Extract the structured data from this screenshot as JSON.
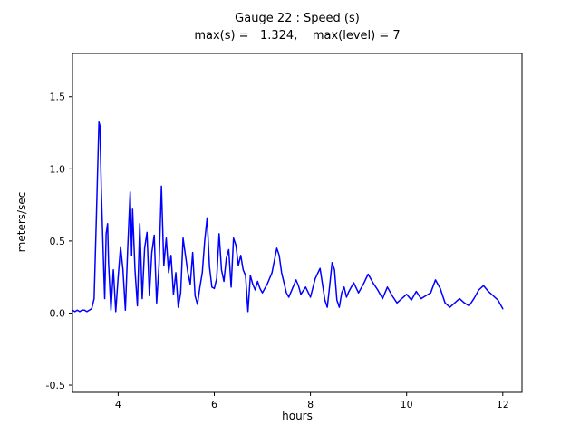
{
  "figure": {
    "title": "Gauge 22 : Speed (s)",
    "subtitle": "max(s) =   1.324,    max(level) = 7",
    "xlabel": "hours",
    "ylabel": "meters/sec"
  },
  "chart_data": {
    "type": "line",
    "title": "Gauge 22 : Speed (s)",
    "subtitle": "max(s) =   1.324,    max(level) = 7",
    "xlabel": "hours",
    "ylabel": "meters/sec",
    "xlim": [
      3.05,
      12.4
    ],
    "ylim": [
      -0.55,
      1.8
    ],
    "xticks": [
      4,
      6,
      8,
      10,
      12
    ],
    "xtick_labels": [
      "4",
      "6",
      "8",
      "10",
      "12"
    ],
    "yticks": [
      -0.5,
      0.0,
      0.5,
      1.0,
      1.5
    ],
    "ytick_labels": [
      "-0.5",
      "0.0",
      "0.5",
      "1.0",
      "1.5"
    ],
    "grid": false,
    "legend": null,
    "line_color": "#0000ff",
    "line_width": 1.5,
    "max_s": 1.324,
    "max_level": 7,
    "series": [
      {
        "name": "speed",
        "points": [
          [
            3.05,
            0.02
          ],
          [
            3.1,
            0.01
          ],
          [
            3.15,
            0.02
          ],
          [
            3.2,
            0.01
          ],
          [
            3.25,
            0.02
          ],
          [
            3.3,
            0.02
          ],
          [
            3.35,
            0.01
          ],
          [
            3.4,
            0.02
          ],
          [
            3.45,
            0.03
          ],
          [
            3.5,
            0.1
          ],
          [
            3.55,
            0.7
          ],
          [
            3.6,
            1.324
          ],
          [
            3.62,
            1.3
          ],
          [
            3.65,
            0.85
          ],
          [
            3.7,
            0.3
          ],
          [
            3.72,
            0.1
          ],
          [
            3.75,
            0.55
          ],
          [
            3.78,
            0.62
          ],
          [
            3.8,
            0.35
          ],
          [
            3.85,
            0.02
          ],
          [
            3.9,
            0.3
          ],
          [
            3.95,
            0.01
          ],
          [
            4.0,
            0.25
          ],
          [
            4.05,
            0.46
          ],
          [
            4.1,
            0.3
          ],
          [
            4.15,
            0.02
          ],
          [
            4.2,
            0.46
          ],
          [
            4.25,
            0.84
          ],
          [
            4.28,
            0.4
          ],
          [
            4.3,
            0.72
          ],
          [
            4.35,
            0.3
          ],
          [
            4.4,
            0.05
          ],
          [
            4.45,
            0.62
          ],
          [
            4.5,
            0.1
          ],
          [
            4.55,
            0.45
          ],
          [
            4.6,
            0.56
          ],
          [
            4.65,
            0.12
          ],
          [
            4.7,
            0.42
          ],
          [
            4.75,
            0.54
          ],
          [
            4.8,
            0.07
          ],
          [
            4.85,
            0.33
          ],
          [
            4.9,
            0.88
          ],
          [
            4.95,
            0.33
          ],
          [
            5.0,
            0.52
          ],
          [
            5.05,
            0.28
          ],
          [
            5.1,
            0.4
          ],
          [
            5.15,
            0.13
          ],
          [
            5.2,
            0.28
          ],
          [
            5.25,
            0.04
          ],
          [
            5.3,
            0.14
          ],
          [
            5.35,
            0.52
          ],
          [
            5.4,
            0.4
          ],
          [
            5.45,
            0.28
          ],
          [
            5.5,
            0.2
          ],
          [
            5.55,
            0.42
          ],
          [
            5.6,
            0.12
          ],
          [
            5.65,
            0.06
          ],
          [
            5.7,
            0.18
          ],
          [
            5.75,
            0.28
          ],
          [
            5.8,
            0.5
          ],
          [
            5.85,
            0.66
          ],
          [
            5.9,
            0.32
          ],
          [
            5.95,
            0.18
          ],
          [
            6.0,
            0.17
          ],
          [
            6.05,
            0.24
          ],
          [
            6.1,
            0.55
          ],
          [
            6.15,
            0.3
          ],
          [
            6.2,
            0.22
          ],
          [
            6.25,
            0.38
          ],
          [
            6.3,
            0.44
          ],
          [
            6.35,
            0.18
          ],
          [
            6.4,
            0.52
          ],
          [
            6.45,
            0.47
          ],
          [
            6.5,
            0.33
          ],
          [
            6.55,
            0.4
          ],
          [
            6.6,
            0.3
          ],
          [
            6.65,
            0.26
          ],
          [
            6.7,
            0.01
          ],
          [
            6.75,
            0.26
          ],
          [
            6.8,
            0.2
          ],
          [
            6.85,
            0.16
          ],
          [
            6.9,
            0.22
          ],
          [
            6.95,
            0.17
          ],
          [
            7.0,
            0.14
          ],
          [
            7.1,
            0.2
          ],
          [
            7.2,
            0.28
          ],
          [
            7.3,
            0.45
          ],
          [
            7.35,
            0.4
          ],
          [
            7.4,
            0.28
          ],
          [
            7.5,
            0.14
          ],
          [
            7.55,
            0.11
          ],
          [
            7.6,
            0.15
          ],
          [
            7.7,
            0.23
          ],
          [
            7.75,
            0.19
          ],
          [
            7.8,
            0.13
          ],
          [
            7.9,
            0.18
          ],
          [
            8.0,
            0.11
          ],
          [
            8.1,
            0.24
          ],
          [
            8.2,
            0.31
          ],
          [
            8.3,
            0.09
          ],
          [
            8.35,
            0.04
          ],
          [
            8.4,
            0.19
          ],
          [
            8.45,
            0.35
          ],
          [
            8.5,
            0.3
          ],
          [
            8.55,
            0.09
          ],
          [
            8.6,
            0.04
          ],
          [
            8.65,
            0.14
          ],
          [
            8.7,
            0.18
          ],
          [
            8.75,
            0.11
          ],
          [
            8.8,
            0.15
          ],
          [
            8.9,
            0.21
          ],
          [
            9.0,
            0.14
          ],
          [
            9.1,
            0.2
          ],
          [
            9.2,
            0.27
          ],
          [
            9.3,
            0.21
          ],
          [
            9.4,
            0.16
          ],
          [
            9.5,
            0.1
          ],
          [
            9.6,
            0.18
          ],
          [
            9.7,
            0.12
          ],
          [
            9.8,
            0.07
          ],
          [
            9.9,
            0.1
          ],
          [
            10.0,
            0.13
          ],
          [
            10.1,
            0.09
          ],
          [
            10.2,
            0.15
          ],
          [
            10.3,
            0.1
          ],
          [
            10.4,
            0.12
          ],
          [
            10.5,
            0.14
          ],
          [
            10.6,
            0.23
          ],
          [
            10.7,
            0.17
          ],
          [
            10.8,
            0.07
          ],
          [
            10.9,
            0.04
          ],
          [
            11.0,
            0.07
          ],
          [
            11.1,
            0.1
          ],
          [
            11.2,
            0.07
          ],
          [
            11.3,
            0.05
          ],
          [
            11.4,
            0.1
          ],
          [
            11.5,
            0.16
          ],
          [
            11.6,
            0.19
          ],
          [
            11.7,
            0.15
          ],
          [
            11.8,
            0.12
          ],
          [
            11.9,
            0.09
          ],
          [
            12.0,
            0.03
          ]
        ]
      }
    ]
  }
}
